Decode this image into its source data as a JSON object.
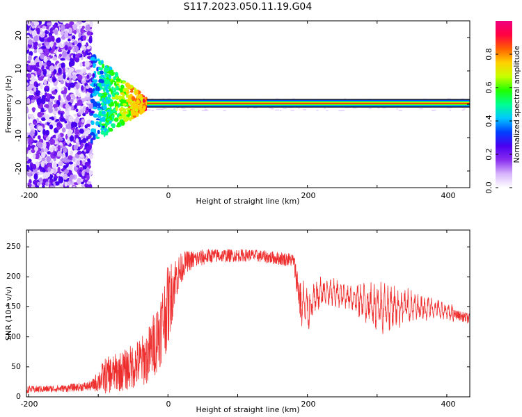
{
  "figure_title": "S117.2023.050.11.19.G04",
  "chart_data": [
    {
      "type": "heatmap",
      "title": "",
      "xlabel": "Height of straight line (km)",
      "ylabel": "Frequency (Hz)",
      "xlim": [
        -203,
        433
      ],
      "ylim": [
        -25,
        25
      ],
      "xticks": [
        "-200",
        "0",
        "200",
        "400"
      ],
      "yticks": [
        "20",
        "10",
        "0",
        "-10",
        "-20"
      ],
      "colorbar": {
        "label": "Normalized spectral amplitude",
        "range": [
          0,
          1
        ],
        "ticks": [
          "0.0",
          "0.2",
          "0.4",
          "0.6",
          "0.8"
        ],
        "colors": [
          "#ffffff",
          "#d6b4fb",
          "#8a2cf0",
          "#4a00f0",
          "#0040ff",
          "#00c8ff",
          "#00ff90",
          "#20ff00",
          "#c8ff00",
          "#ffd000",
          "#ff6000",
          "#ff0040",
          "#f00080"
        ]
      },
      "features": {
        "broadband_noise_region_km": [
          -203,
          -110
        ],
        "transition_region_km": [
          -110,
          -30
        ],
        "steady_tone_region_km": [
          -30,
          433
        ],
        "steady_tone_frequency_hz": 0.3
      }
    },
    {
      "type": "line",
      "title": "",
      "xlabel": "Height of straight line (km)",
      "ylabel": "SNR (10 * v/v)",
      "xlim": [
        -203,
        433
      ],
      "ylim": [
        0,
        278
      ],
      "xticks": [
        "-200",
        "0",
        "200",
        "400"
      ],
      "yticks": [
        "0",
        "50",
        "100",
        "150",
        "200",
        "250"
      ],
      "color": "#ee2d2d",
      "envelope_km": [
        -203,
        -150,
        -110,
        -90,
        -60,
        -30,
        -15,
        0,
        10,
        25,
        60,
        120,
        180,
        190,
        200,
        220,
        260,
        300,
        340,
        380,
        410,
        433
      ],
      "envelope_mean": [
        12,
        14,
        18,
        35,
        45,
        65,
        100,
        150,
        195,
        225,
        235,
        236,
        228,
        160,
        145,
        175,
        168,
        150,
        150,
        148,
        138,
        130
      ],
      "envelope_spread": [
        6,
        6,
        8,
        30,
        35,
        45,
        60,
        70,
        40,
        18,
        12,
        10,
        12,
        40,
        40,
        25,
        22,
        45,
        30,
        18,
        15,
        18
      ]
    }
  ]
}
